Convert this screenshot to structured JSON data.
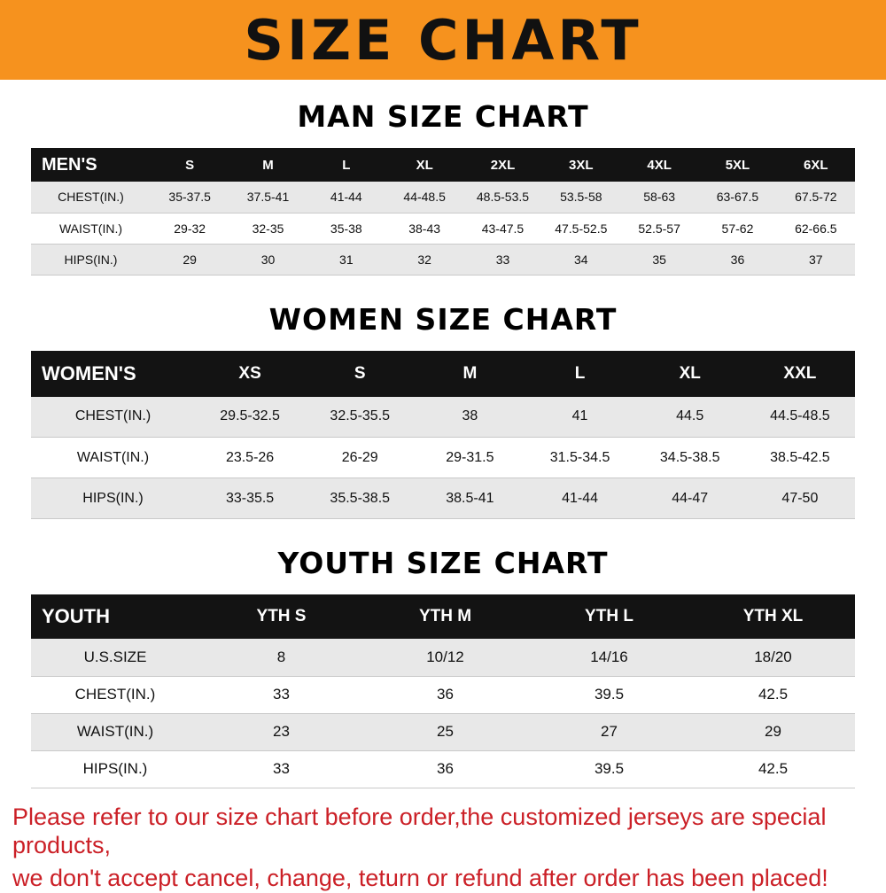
{
  "banner": {
    "title": "SIZE CHART",
    "bg": "#f6921e"
  },
  "sections": [
    {
      "id": "men",
      "title": "MAN SIZE CHART",
      "header": [
        "MEN'S",
        "S",
        "M",
        "L",
        "XL",
        "2XL",
        "3XL",
        "4XL",
        "5XL",
        "6XL"
      ],
      "rows": [
        [
          "CHEST(IN.)",
          "35-37.5",
          "37.5-41",
          "41-44",
          "44-48.5",
          "48.5-53.5",
          "53.5-58",
          "58-63",
          "63-67.5",
          "67.5-72"
        ],
        [
          "WAIST(IN.)",
          "29-32",
          "32-35",
          "35-38",
          "38-43",
          "43-47.5",
          "47.5-52.5",
          "52.5-57",
          "57-62",
          "62-66.5"
        ],
        [
          "HIPS(IN.)",
          "29",
          "30",
          "31",
          "32",
          "33",
          "34",
          "35",
          "36",
          "37"
        ]
      ]
    },
    {
      "id": "women",
      "title": "WOMEN SIZE CHART",
      "header": [
        "WOMEN'S",
        "XS",
        "S",
        "M",
        "L",
        "XL",
        "XXL"
      ],
      "rows": [
        [
          "CHEST(IN.)",
          "29.5-32.5",
          "32.5-35.5",
          "38",
          "41",
          "44.5",
          "44.5-48.5"
        ],
        [
          "WAIST(IN.)",
          "23.5-26",
          "26-29",
          "29-31.5",
          "31.5-34.5",
          "34.5-38.5",
          "38.5-42.5"
        ],
        [
          "HIPS(IN.)",
          "33-35.5",
          "35.5-38.5",
          "38.5-41",
          "41-44",
          "44-47",
          "47-50"
        ]
      ]
    },
    {
      "id": "youth",
      "title": "YOUTH SIZE CHART",
      "header": [
        "YOUTH",
        "YTH S",
        "YTH M",
        "YTH L",
        "YTH XL"
      ],
      "rows": [
        [
          "U.S.SIZE",
          "8",
          "10/12",
          "14/16",
          "18/20"
        ],
        [
          "CHEST(IN.)",
          "33",
          "36",
          "39.5",
          "42.5"
        ],
        [
          "WAIST(IN.)",
          "23",
          "25",
          "27",
          "29"
        ],
        [
          "HIPS(IN.)",
          "33",
          "36",
          "39.5",
          "42.5"
        ]
      ]
    }
  ],
  "footer": {
    "line1": "Please refer to our size chart before order,the customized jerseys are special products,",
    "line2": "we don't accept cancel, change, teturn or refund after order has been placed!",
    "color": "#cb2027"
  }
}
